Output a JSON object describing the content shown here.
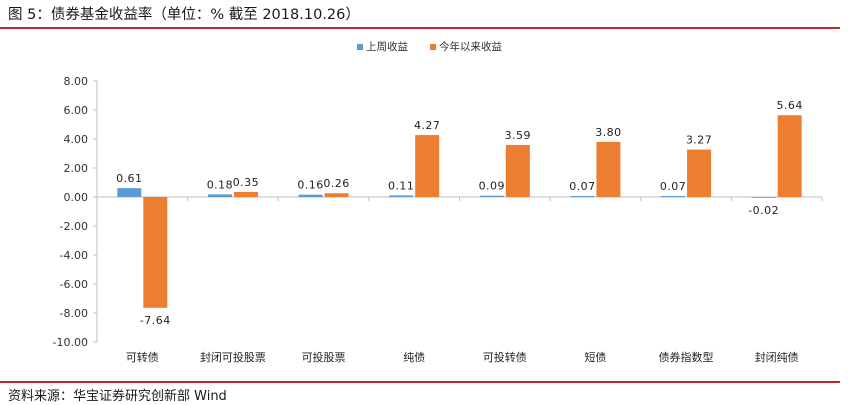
{
  "header": {
    "title": "图 5：债券基金收益率（单位：% 截至 2018.10.26）"
  },
  "footer": {
    "source": "资料来源：华宝证券研究创新部 Wind"
  },
  "colors": {
    "accent_rule": "#c0262d",
    "series_1": "#5b9bd5",
    "series_2": "#ed7d31"
  },
  "chart_data": {
    "type": "bar",
    "categories": [
      "可转债",
      "封闭可投股票",
      "可投股票",
      "纯债",
      "可投转债",
      "短债",
      "债券指数型",
      "封闭纯债"
    ],
    "series": [
      {
        "name": "上周收益",
        "values": [
          0.61,
          0.18,
          0.16,
          0.11,
          0.09,
          0.07,
          0.07,
          -0.02
        ],
        "labels": [
          "0.61",
          "0.18",
          "0.16",
          "0.11",
          "0.09",
          "0.07",
          "0.07",
          "-0.02"
        ]
      },
      {
        "name": "今年以来收益",
        "values": [
          -7.64,
          0.35,
          0.26,
          4.27,
          3.59,
          3.8,
          3.27,
          5.64
        ],
        "labels": [
          "-7.64",
          "0.35",
          "0.26",
          "4.27",
          "3.59",
          "3.80",
          "3.27",
          "5.64"
        ]
      }
    ],
    "ylim": [
      -10,
      8
    ],
    "yticks": [
      "8.00",
      "6.00",
      "4.00",
      "2.00",
      "0.00",
      "-2.00",
      "-4.00",
      "-6.00",
      "-8.00",
      "-10.00"
    ],
    "legend_position": "top-center",
    "grid": false
  }
}
